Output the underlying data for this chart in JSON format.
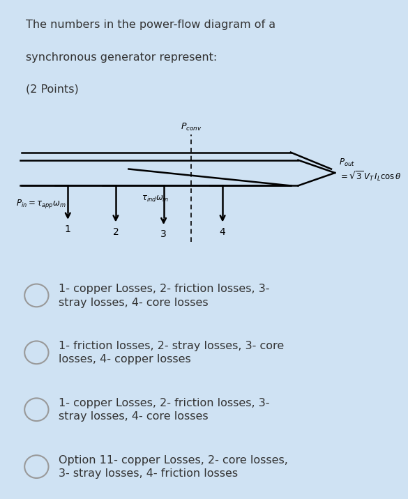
{
  "title_lines": [
    "The numbers in the power-flow diagram of a",
    "synchronous generator represent:",
    "(2 Points)"
  ],
  "bg_color": "#cfe2f3",
  "diagram_bg": "#ffffff",
  "option_bg": "#eeeeee",
  "gap_color": "#cfe2f3",
  "options": [
    "1- copper Losses, 2- friction losses, 3-\nstray losses, 4- core losses",
    "1- friction losses, 2- stray losses, 3- core\nlosses, 4- copper losses",
    "1- copper Losses, 2- friction losses, 3-\nstray losses, 4- core losses",
    "Option 11- copper Losses, 2- core losses,\n3- stray losses, 4- friction losses"
  ],
  "pin_label": "$P_{in} = \\tau_{app}\\omega_m$",
  "pconv_label": "$P_{conv}$",
  "tind_label": "$\\tau_{ind}\\omega_m$",
  "pout_label": "$P_{out}$",
  "pout_formula": "$= \\sqrt{3}\\,V_T\\,I_L\\cos\\theta$",
  "text_color": "#333333",
  "radio_color": "#aaaaaa",
  "font_size_title": 11.5,
  "font_size_option": 11.5,
  "font_size_diag": 9
}
